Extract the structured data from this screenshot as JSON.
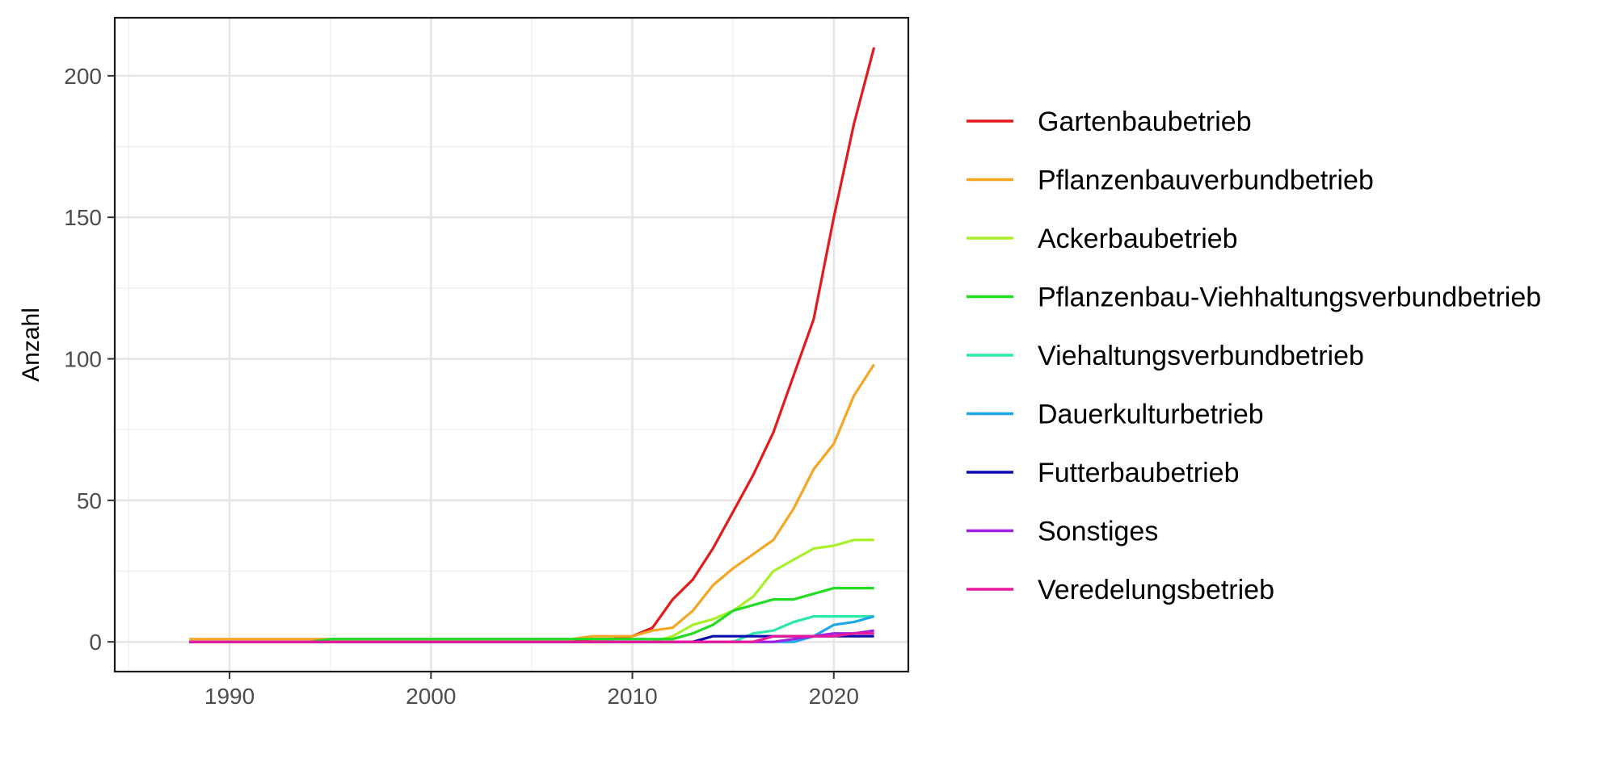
{
  "chart_data": {
    "type": "line",
    "title": "",
    "xlabel": "",
    "ylabel": "Anzahl",
    "xlim": [
      1984.3,
      2023.7
    ],
    "ylim": [
      -10.5,
      220.5
    ],
    "x_ticks": [
      1990,
      2000,
      2010,
      2020
    ],
    "y_ticks": [
      0,
      50,
      100,
      150,
      200
    ],
    "grid": true,
    "legend_position": "right",
    "x": [
      1988,
      1989,
      1990,
      1991,
      1992,
      1993,
      1994,
      1995,
      1996,
      1997,
      1998,
      1999,
      2000,
      2001,
      2002,
      2003,
      2004,
      2005,
      2006,
      2007,
      2008,
      2009,
      2010,
      2011,
      2012,
      2013,
      2014,
      2015,
      2016,
      2017,
      2018,
      2019,
      2020,
      2021,
      2022
    ],
    "series": [
      {
        "name": "Gartenbaubetrieb",
        "color": "#e41a1c",
        "values": [
          0,
          0,
          0,
          0,
          0,
          0,
          0,
          0,
          0,
          0,
          0,
          0,
          0,
          0,
          0,
          0,
          0,
          0,
          0,
          0,
          1,
          1,
          2,
          5,
          15,
          22,
          33,
          46,
          59,
          74,
          94,
          114,
          150,
          183,
          210
        ]
      },
      {
        "name": "Pflanzenbauverbundbetrieb",
        "color": "#f5a623",
        "values": [
          1,
          1,
          1,
          1,
          1,
          1,
          1,
          1,
          1,
          1,
          1,
          1,
          1,
          1,
          1,
          1,
          1,
          1,
          1,
          1,
          2,
          2,
          2,
          4,
          5,
          11,
          20,
          26,
          31,
          36,
          47,
          61,
          70,
          87,
          98
        ]
      },
      {
        "name": "Ackerbaubetrieb",
        "color": "#a8f02a",
        "values": [
          0,
          0,
          0,
          0,
          0,
          0,
          0,
          0,
          0,
          0,
          0,
          0,
          0,
          0,
          0,
          0,
          0,
          0,
          0,
          0,
          0,
          0,
          0,
          0,
          2,
          6,
          8,
          11,
          16,
          25,
          29,
          33,
          34,
          36,
          36
        ]
      },
      {
        "name": "Pflanzenbau-Viehhaltungsverbundbetrieb",
        "color": "#22dd22",
        "values": [
          0,
          0,
          0,
          0,
          0,
          0,
          0,
          1,
          1,
          1,
          1,
          1,
          1,
          1,
          1,
          1,
          1,
          1,
          1,
          1,
          1,
          1,
          1,
          1,
          1,
          3,
          6,
          11,
          13,
          15,
          15,
          17,
          19,
          19,
          19
        ]
      },
      {
        "name": "Viehaltungsverbundbetrieb",
        "color": "#2ee8a8",
        "values": [
          0,
          0,
          0,
          0,
          0,
          0,
          0,
          0,
          0,
          0,
          0,
          0,
          0,
          0,
          0,
          0,
          0,
          0,
          0,
          0,
          0,
          0,
          0,
          0,
          0,
          0,
          0,
          0,
          3,
          4,
          7,
          9,
          9,
          9,
          9
        ]
      },
      {
        "name": "Dauerkulturbetrieb",
        "color": "#1ea7e8",
        "values": [
          0,
          0,
          0,
          0,
          0,
          0,
          0,
          0,
          0,
          0,
          0,
          0,
          0,
          0,
          0,
          0,
          0,
          0,
          0,
          0,
          0,
          0,
          0,
          0,
          0,
          0,
          0,
          0,
          0,
          0,
          0,
          2,
          6,
          7,
          9
        ]
      },
      {
        "name": "Futterbaubetrieb",
        "color": "#0b0bb0",
        "values": [
          0,
          0,
          0,
          0,
          0,
          0,
          0,
          0,
          0,
          0,
          0,
          0,
          0,
          0,
          0,
          0,
          0,
          0,
          0,
          0,
          0,
          0,
          0,
          0,
          0,
          0,
          2,
          2,
          2,
          2,
          2,
          2,
          2,
          2,
          2
        ]
      },
      {
        "name": "Sonstiges",
        "color": "#a020e0",
        "values": [
          0,
          0,
          0,
          0,
          0,
          0,
          0,
          0,
          0,
          0,
          0,
          0,
          0,
          0,
          0,
          0,
          0,
          0,
          0,
          0,
          0,
          0,
          0,
          0,
          0,
          0,
          0,
          0,
          0,
          0,
          1,
          2,
          3,
          3,
          4
        ]
      },
      {
        "name": "Veredelungsbetrieb",
        "color": "#e8189b",
        "values": [
          0,
          0,
          0,
          0,
          0,
          0,
          0,
          0,
          0,
          0,
          0,
          0,
          0,
          0,
          0,
          0,
          0,
          0,
          0,
          0,
          0,
          0,
          0,
          0,
          0,
          0,
          0,
          0,
          0,
          2,
          2,
          2,
          2,
          3,
          3
        ]
      }
    ]
  }
}
